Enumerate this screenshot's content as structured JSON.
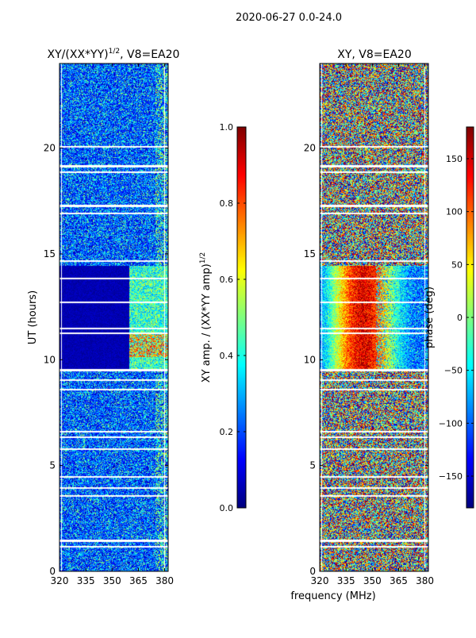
{
  "figure_title": "2020-06-27 0.0-24.0",
  "shared_xlabel": "frequency (MHz)",
  "colors": {
    "jet": [
      "#00007f",
      "#0000ff",
      "#007fff",
      "#00ffff",
      "#7fff7f",
      "#ffff00",
      "#ff7f00",
      "#ff0000",
      "#7f0000"
    ],
    "flag": "#ffffff",
    "frame": "#000000"
  },
  "chart_data": [
    {
      "id": "left",
      "type": "heatmap",
      "title_main": "XY/(XX*YY)",
      "title_sup": "1/2",
      "title_tail": ", V8=EA20",
      "xlabel": "",
      "ylabel": "UT (hours)",
      "xlim": [
        320,
        382
      ],
      "ylim": [
        0,
        24
      ],
      "xticks": [
        320,
        335,
        350,
        365,
        380
      ],
      "yticks": [
        0,
        5,
        10,
        15,
        20
      ],
      "colorbar": {
        "range": [
          0.0,
          1.0
        ],
        "ticks": [
          "0.0",
          "0.2",
          "0.4",
          "0.6",
          "0.8",
          "1.0"
        ],
        "tick_values": [
          0.0,
          0.2,
          0.4,
          0.6,
          0.8,
          1.0
        ],
        "label": "XY amp. / (XX*YY amp)",
        "label_sup": "1/2"
      }
    },
    {
      "id": "right",
      "type": "heatmap",
      "title_main": "XY, V8=EA20",
      "title_sup": "",
      "title_tail": "",
      "xlabel": "",
      "ylabel": "",
      "xlim": [
        320,
        382
      ],
      "ylim": [
        0,
        24
      ],
      "xticks": [
        320,
        335,
        350,
        365,
        380
      ],
      "yticks": [
        0,
        5,
        10,
        15,
        20
      ],
      "colorbar": {
        "range": [
          -180,
          180
        ],
        "ticks": [
          "150",
          "100",
          "50",
          "0",
          "−50",
          "−100",
          "−150"
        ],
        "tick_values": [
          150,
          100,
          50,
          0,
          -50,
          -100,
          -150
        ],
        "label": "phase (deg)",
        "label_sup": ""
      }
    }
  ]
}
